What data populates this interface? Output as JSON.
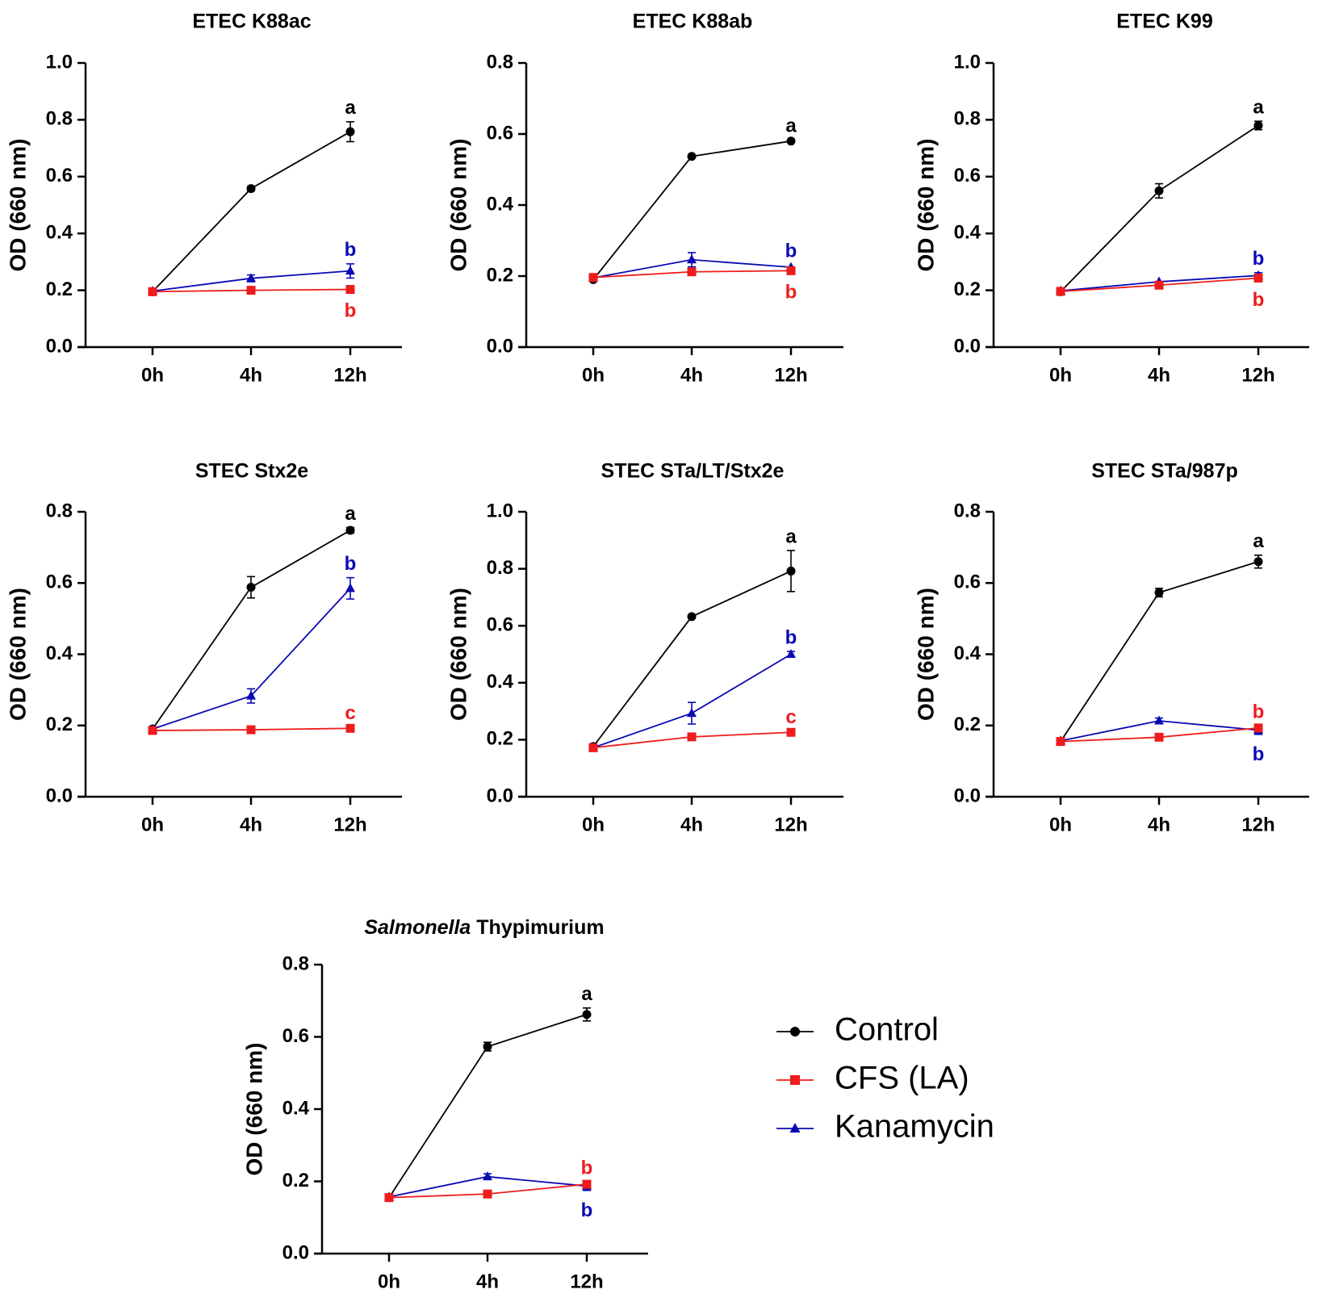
{
  "figure": {
    "legend": [
      {
        "name": "Control",
        "color": "#000000",
        "marker": "circle"
      },
      {
        "name": "CFS (LA)",
        "color": "#ee1c1c",
        "marker": "square"
      },
      {
        "name": "Kanamycin",
        "color": "#0a0ab4",
        "marker": "triangle"
      }
    ]
  },
  "chart_data": [
    {
      "type": "line",
      "title": "ETEC K88ac",
      "xlabel": "",
      "ylabel": "OD  (660 nm)",
      "categories": [
        "0h",
        "4h",
        "12h"
      ],
      "ylim": [
        0,
        1.0
      ],
      "yticks": [
        0.0,
        0.2,
        0.4,
        0.6,
        0.8,
        1.0
      ],
      "series": [
        {
          "name": "Control",
          "values": [
            0.195,
            0.558,
            0.758
          ],
          "errors": [
            0.005,
            0.008,
            0.035
          ],
          "letter": "a"
        },
        {
          "name": "CFS (LA)",
          "values": [
            0.195,
            0.2,
            0.203
          ],
          "errors": [
            0.003,
            0.004,
            0.004
          ],
          "letter": "b"
        },
        {
          "name": "Kanamycin",
          "values": [
            0.197,
            0.242,
            0.268
          ],
          "errors": [
            0.003,
            0.012,
            0.025
          ],
          "letter": "b"
        }
      ]
    },
    {
      "type": "line",
      "title": "ETEC K88ab",
      "xlabel": "",
      "ylabel": "OD  (660 nm)",
      "categories": [
        "0h",
        "4h",
        "12h"
      ],
      "ylim": [
        0,
        0.8
      ],
      "yticks": [
        0.0,
        0.2,
        0.4,
        0.6,
        0.8
      ],
      "series": [
        {
          "name": "Control",
          "values": [
            0.19,
            0.537,
            0.58
          ],
          "errors": [
            0.004,
            0.006,
            0.004
          ],
          "letter": "a"
        },
        {
          "name": "CFS (LA)",
          "values": [
            0.196,
            0.212,
            0.215
          ],
          "errors": [
            0.003,
            0.004,
            0.004
          ],
          "letter": "b"
        },
        {
          "name": "Kanamycin",
          "values": [
            0.195,
            0.246,
            0.225
          ],
          "errors": [
            0.003,
            0.02,
            0.006
          ],
          "letter": "b"
        }
      ]
    },
    {
      "type": "line",
      "title": "ETEC K99",
      "xlabel": "",
      "ylabel": "OD  (660 nm)",
      "categories": [
        "0h",
        "4h",
        "12h"
      ],
      "ylim": [
        0,
        1.0
      ],
      "yticks": [
        0.0,
        0.2,
        0.4,
        0.6,
        0.8,
        1.0
      ],
      "series": [
        {
          "name": "Control",
          "values": [
            0.195,
            0.55,
            0.78
          ],
          "errors": [
            0.005,
            0.025,
            0.015
          ],
          "letter": "a"
        },
        {
          "name": "CFS (LA)",
          "values": [
            0.196,
            0.218,
            0.243
          ],
          "errors": [
            0.003,
            0.004,
            0.006
          ],
          "letter": "b"
        },
        {
          "name": "Kanamycin",
          "values": [
            0.198,
            0.23,
            0.252
          ],
          "errors": [
            0.003,
            0.005,
            0.01
          ],
          "letter": "b"
        }
      ]
    },
    {
      "type": "line",
      "title": "STEC Stx2e",
      "xlabel": "",
      "ylabel": "OD  (660 nm)",
      "categories": [
        "0h",
        "4h",
        "12h"
      ],
      "ylim": [
        0,
        0.8
      ],
      "yticks": [
        0.0,
        0.2,
        0.4,
        0.6,
        0.8
      ],
      "series": [
        {
          "name": "Control",
          "values": [
            0.19,
            0.588,
            0.748
          ],
          "errors": [
            0.004,
            0.03,
            0.008
          ],
          "letter": "a"
        },
        {
          "name": "CFS (LA)",
          "values": [
            0.186,
            0.188,
            0.192
          ],
          "errors": [
            0.003,
            0.003,
            0.004
          ],
          "letter": "c"
        },
        {
          "name": "Kanamycin",
          "values": [
            0.19,
            0.283,
            0.585
          ],
          "errors": [
            0.003,
            0.02,
            0.03
          ],
          "letter": "b"
        }
      ]
    },
    {
      "type": "line",
      "title": "STEC STa/LT/Stx2e",
      "xlabel": "",
      "ylabel": "OD  (660 nm)",
      "categories": [
        "0h",
        "4h",
        "12h"
      ],
      "ylim": [
        0,
        1.0
      ],
      "yticks": [
        0.0,
        0.2,
        0.4,
        0.6,
        0.8,
        1.0
      ],
      "series": [
        {
          "name": "Control",
          "values": [
            0.176,
            0.632,
            0.792
          ],
          "errors": [
            0.005,
            0.005,
            0.072
          ],
          "letter": "a"
        },
        {
          "name": "CFS (LA)",
          "values": [
            0.172,
            0.21,
            0.226
          ],
          "errors": [
            0.003,
            0.004,
            0.005
          ],
          "letter": "c"
        },
        {
          "name": "Kanamycin",
          "values": [
            0.172,
            0.293,
            0.5
          ],
          "errors": [
            0.003,
            0.038,
            0.01
          ],
          "letter": "b"
        }
      ]
    },
    {
      "type": "line",
      "title": "STEC STa/987p",
      "xlabel": "",
      "ylabel": "OD  (660 nm)",
      "categories": [
        "0h",
        "4h",
        "12h"
      ],
      "ylim": [
        0,
        0.8
      ],
      "yticks": [
        0.0,
        0.2,
        0.4,
        0.6,
        0.8
      ],
      "series": [
        {
          "name": "Control",
          "values": [
            0.155,
            0.573,
            0.66
          ],
          "errors": [
            0.004,
            0.012,
            0.018
          ],
          "letter": "a"
        },
        {
          "name": "CFS (LA)",
          "values": [
            0.155,
            0.167,
            0.193
          ],
          "errors": [
            0.003,
            0.004,
            0.006
          ],
          "letter": "b"
        },
        {
          "name": "Kanamycin",
          "values": [
            0.157,
            0.213,
            0.187
          ],
          "errors": [
            0.003,
            0.008,
            0.012
          ],
          "letter": "b"
        }
      ]
    },
    {
      "type": "line",
      "title": "Salmonella Thypimurium",
      "title_italic": "Salmonella",
      "title_rest": " Thypimurium",
      "xlabel": "",
      "ylabel": "OD  (660 nm)",
      "categories": [
        "0h",
        "4h",
        "12h"
      ],
      "ylim": [
        0,
        0.8
      ],
      "yticks": [
        0.0,
        0.2,
        0.4,
        0.6,
        0.8
      ],
      "series": [
        {
          "name": "Control",
          "values": [
            0.155,
            0.573,
            0.662
          ],
          "errors": [
            0.004,
            0.012,
            0.018
          ],
          "letter": "a"
        },
        {
          "name": "CFS (LA)",
          "values": [
            0.155,
            0.165,
            0.192
          ],
          "errors": [
            0.003,
            0.004,
            0.006
          ],
          "letter": "b"
        },
        {
          "name": "Kanamycin",
          "values": [
            0.157,
            0.213,
            0.187
          ],
          "errors": [
            0.003,
            0.008,
            0.012
          ],
          "letter": "b"
        }
      ]
    }
  ]
}
